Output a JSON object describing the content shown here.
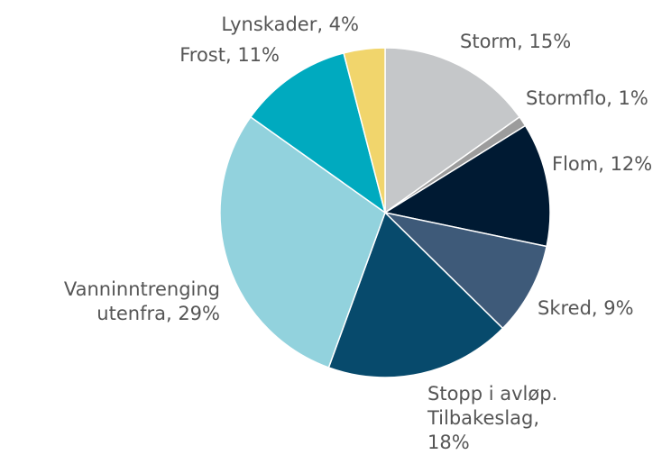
{
  "chart_data": {
    "type": "pie",
    "labels": [
      [
        "Storm, 15%"
      ],
      [
        "Stormflo, 1%"
      ],
      [
        "Flom, 12%"
      ],
      [
        "Skred, 9%"
      ],
      [
        "Stopp i avløp.",
        "Tilbakeslag,",
        "18%"
      ],
      [
        "Vanninntrenging",
        "utenfra, 29%"
      ],
      [
        "Frost, 11%"
      ],
      [
        "Lynskader, 4%"
      ]
    ],
    "values": [
      15,
      1,
      12,
      9,
      18,
      29,
      11,
      4
    ],
    "colors": [
      "#c5c7c9",
      "#9c9c9c",
      "#001a33",
      "#3e5a79",
      "#074a6c",
      "#92d2dd",
      "#00aabf",
      "#f1d56c"
    ]
  }
}
